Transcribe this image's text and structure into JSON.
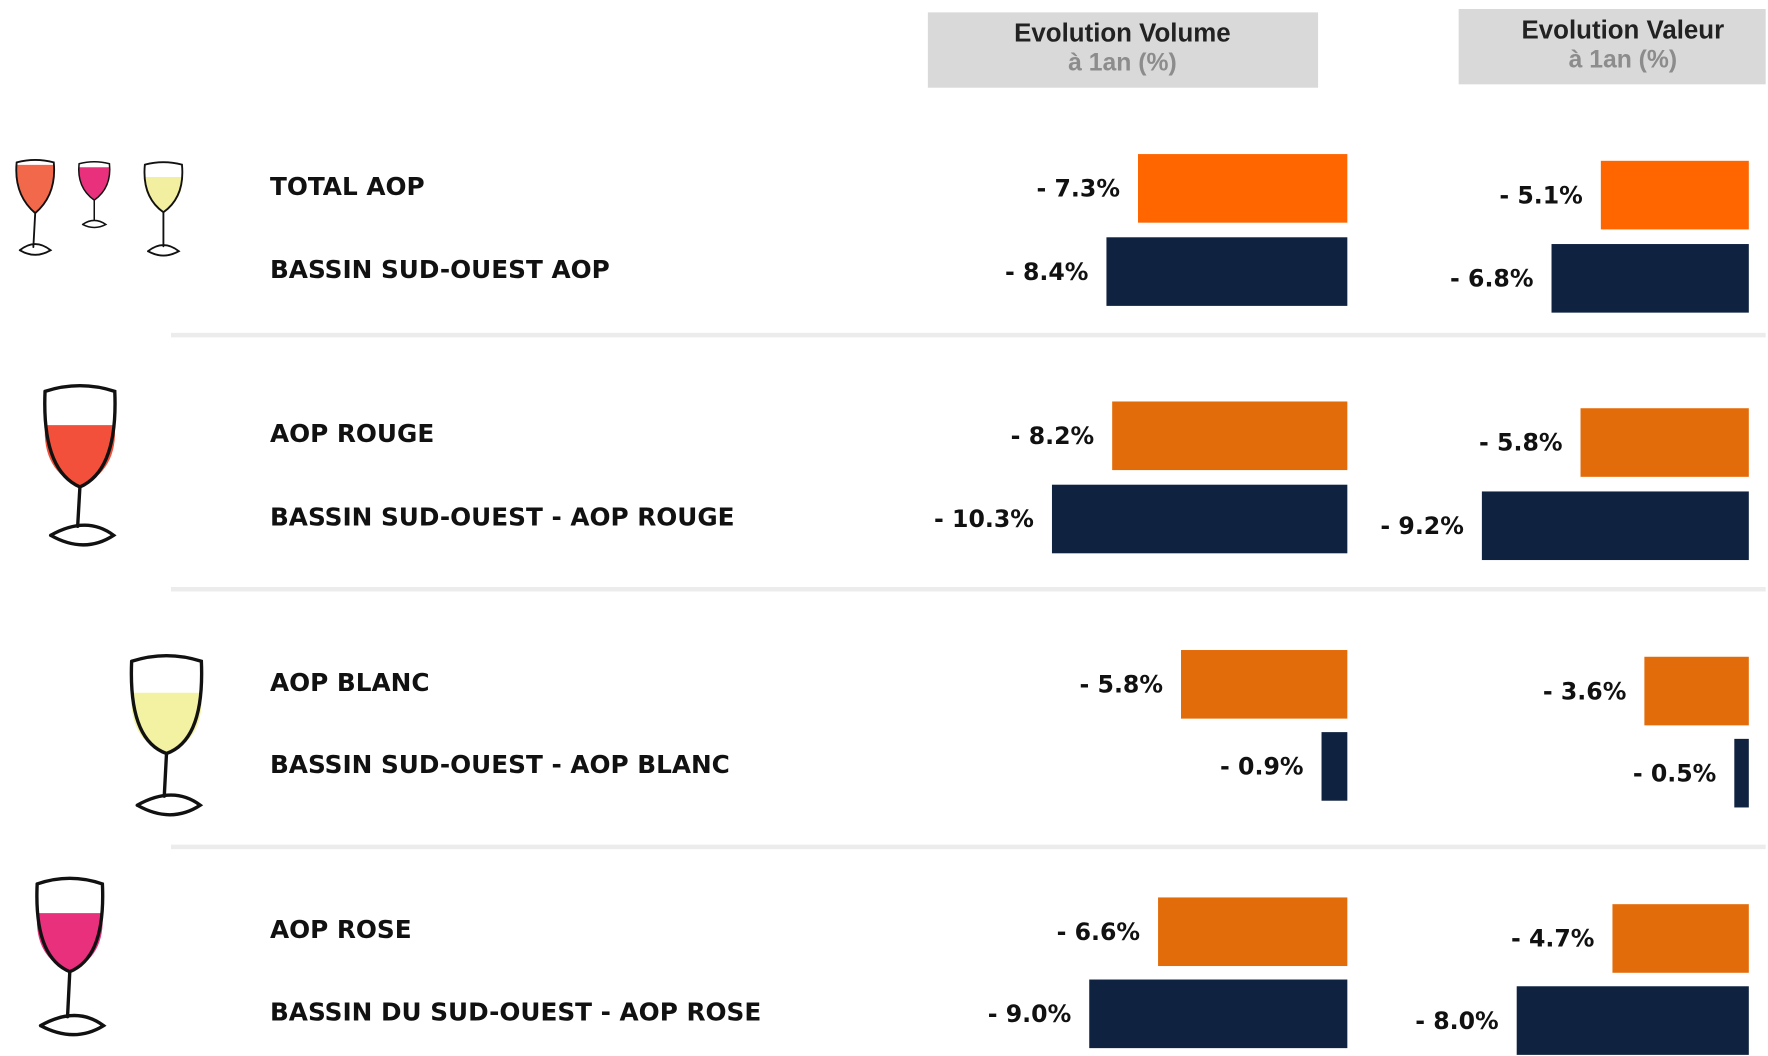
{
  "chart_data": [
    {
      "type": "bar",
      "title": "Evolution Volume",
      "subtitle": "à 1an (%)",
      "categories": [
        "TOTAL AOP",
        "BASSIN SUD-OUEST AOP",
        "AOP ROUGE",
        "BASSIN SUD-OUEST  -  AOP ROUGE",
        "AOP BLANC",
        "BASSIN SUD-OUEST - AOP BLANC",
        "AOP ROSE",
        "BASSIN DU SUD-OUEST - AOP ROSE"
      ],
      "values": [
        -7.3,
        -8.4,
        -8.2,
        -10.3,
        -5.8,
        -0.9,
        -6.6,
        -9.0
      ],
      "value_labels": [
        "- 7.3%",
        "- 8.4%",
        "- 8.2%",
        "- 10.3%",
        "- 5.8%",
        "- 0.9%",
        "- 6.6%",
        "- 9.0%"
      ],
      "colors": [
        "#ff6600",
        "#0f2240",
        "#e36c0a",
        "#0f2240",
        "#e36c0a",
        "#0f2240",
        "#e36c0a",
        "#0f2240"
      ]
    },
    {
      "type": "bar",
      "title": "Evolution Valeur",
      "subtitle": "à 1an (%)",
      "values": [
        -5.1,
        -6.8,
        -5.8,
        -9.2,
        -3.6,
        -0.5,
        -4.7,
        -8.0
      ],
      "value_labels": [
        "- 5.1%",
        "- 6.8%",
        "- 5.8%",
        "- 9.2%",
        "- 3.6%",
        "- 0.5%",
        "- 4.7%",
        "- 8.0%"
      ],
      "colors": [
        "#ff6600",
        "#0f2240",
        "#e36c0a",
        "#0f2240",
        "#e36c0a",
        "#0f2240",
        "#e36c0a",
        "#0f2240"
      ]
    }
  ]
}
